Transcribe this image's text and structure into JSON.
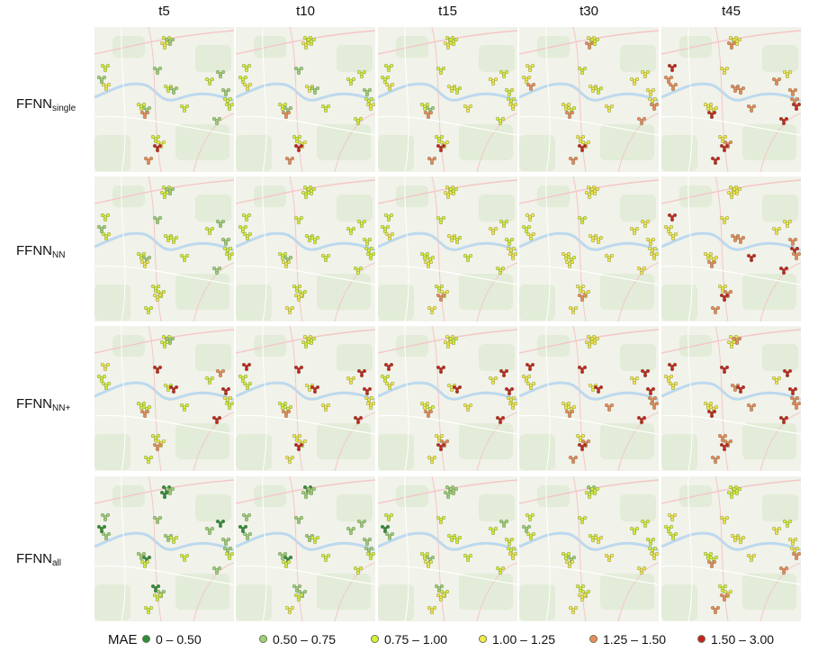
{
  "columns": [
    {
      "label": "t5"
    },
    {
      "label": "t10"
    },
    {
      "label": "t15"
    },
    {
      "label": "t30"
    },
    {
      "label": "t45"
    }
  ],
  "rows": [
    {
      "base": "FFNN",
      "sub": "single"
    },
    {
      "base": "FFNN",
      "sub": "NN"
    },
    {
      "base": "FFNN",
      "sub": "NN+"
    },
    {
      "base": "FFNN",
      "sub": "all"
    }
  ],
  "legend": {
    "title": "MAE",
    "items": [
      {
        "label": "0 – 0.50",
        "color": "#2e8b3a"
      },
      {
        "label": "0.50 – 0.75",
        "color": "#9fd07a"
      },
      {
        "label": "0.75 – 1.00",
        "color": "#d9f03a"
      },
      {
        "label": "1.00 – 1.25",
        "color": "#f4ea4a"
      },
      {
        "label": "1.25 – 1.50",
        "color": "#ef8a5c"
      },
      {
        "label": "1.50 – 3.00",
        "color": "#c8201f"
      }
    ]
  },
  "map_colors": {
    "base": "#f1f2ea",
    "park": "#dcead0",
    "water": "#bcd9ee",
    "road_major": "#f4c6c6",
    "road_minor": "#ffffff",
    "dot_stroke": "#6a7a50"
  },
  "mae_levels": [
    [
      [
        2,
        1,
        3,
        2,
        1,
        1,
        2,
        4,
        2,
        1,
        2,
        3,
        1,
        2,
        3,
        5,
        4,
        2,
        1,
        2,
        1,
        2,
        1
      ],
      [
        2,
        2,
        3,
        3,
        1,
        1,
        2,
        4,
        2,
        1,
        2,
        3,
        2,
        2,
        3,
        5,
        4,
        2,
        2,
        2,
        1,
        3,
        2
      ],
      [
        2,
        2,
        3,
        3,
        2,
        1,
        2,
        4,
        3,
        2,
        2,
        3,
        2,
        2,
        3,
        5,
        4,
        3,
        2,
        2,
        2,
        3,
        2
      ],
      [
        3,
        3,
        4,
        3,
        2,
        2,
        3,
        4,
        3,
        2,
        3,
        4,
        2,
        3,
        3,
        5,
        4,
        3,
        3,
        3,
        3,
        4,
        4
      ],
      [
        5,
        4,
        4,
        4,
        4,
        3,
        3,
        5,
        4,
        3,
        3,
        4,
        3,
        3,
        4,
        5,
        5,
        4,
        3,
        4,
        4,
        5,
        5
      ]
    ],
    [
      [
        2,
        1,
        2,
        2,
        2,
        1,
        2,
        3,
        2,
        1,
        2,
        2,
        1,
        2,
        2,
        3,
        2,
        2,
        1,
        2,
        1,
        2,
        1
      ],
      [
        2,
        2,
        2,
        2,
        2,
        1,
        2,
        3,
        2,
        2,
        2,
        2,
        2,
        2,
        2,
        3,
        3,
        2,
        2,
        2,
        2,
        2,
        2
      ],
      [
        2,
        2,
        3,
        3,
        2,
        2,
        2,
        3,
        2,
        2,
        3,
        3,
        2,
        2,
        3,
        4,
        3,
        3,
        2,
        3,
        2,
        3,
        2
      ],
      [
        3,
        2,
        3,
        3,
        3,
        2,
        3,
        3,
        3,
        2,
        3,
        3,
        3,
        3,
        3,
        4,
        3,
        3,
        3,
        3,
        3,
        3,
        3
      ],
      [
        5,
        3,
        3,
        4,
        4,
        3,
        3,
        4,
        5,
        3,
        3,
        3,
        3,
        3,
        4,
        5,
        4,
        3,
        3,
        5,
        4,
        4,
        5
      ]
    ],
    [
      [
        3,
        2,
        2,
        2,
        5,
        2,
        2,
        4,
        2,
        5,
        2,
        2,
        1,
        2,
        3,
        4,
        2,
        2,
        4,
        3,
        5,
        2,
        5
      ],
      [
        5,
        2,
        2,
        3,
        5,
        2,
        2,
        4,
        3,
        5,
        3,
        2,
        2,
        3,
        3,
        5,
        3,
        3,
        5,
        3,
        5,
        3,
        5
      ],
      [
        5,
        2,
        3,
        3,
        5,
        2,
        3,
        4,
        3,
        5,
        3,
        3,
        2,
        3,
        4,
        5,
        3,
        3,
        5,
        3,
        5,
        3,
        5
      ],
      [
        5,
        3,
        3,
        3,
        5,
        3,
        3,
        4,
        4,
        5,
        3,
        3,
        3,
        3,
        4,
        5,
        4,
        3,
        5,
        4,
        5,
        4,
        5
      ],
      [
        5,
        3,
        3,
        4,
        5,
        3,
        3,
        5,
        4,
        5,
        3,
        3,
        4,
        4,
        4,
        5,
        4,
        3,
        5,
        4,
        5,
        4,
        5
      ]
    ],
    [
      [
        1,
        0,
        1,
        1,
        2,
        0,
        1,
        2,
        2,
        1,
        0,
        0,
        1,
        0,
        1,
        2,
        2,
        1,
        0,
        1,
        1,
        2,
        1
      ],
      [
        1,
        0,
        1,
        1,
        2,
        0,
        1,
        2,
        2,
        1,
        0,
        1,
        1,
        1,
        1,
        2,
        3,
        1,
        1,
        1,
        1,
        2,
        2
      ],
      [
        2,
        0,
        1,
        2,
        2,
        1,
        2,
        3,
        2,
        2,
        1,
        1,
        1,
        1,
        2,
        3,
        3,
        2,
        1,
        2,
        2,
        3,
        2
      ],
      [
        2,
        1,
        2,
        2,
        3,
        1,
        2,
        3,
        3,
        2,
        1,
        2,
        2,
        2,
        2,
        3,
        3,
        2,
        2,
        2,
        2,
        3,
        3
      ],
      [
        3,
        2,
        2,
        3,
        3,
        2,
        2,
        4,
        3,
        3,
        2,
        2,
        2,
        2,
        3,
        4,
        4,
        3,
        2,
        3,
        3,
        4,
        4
      ]
    ]
  ]
}
